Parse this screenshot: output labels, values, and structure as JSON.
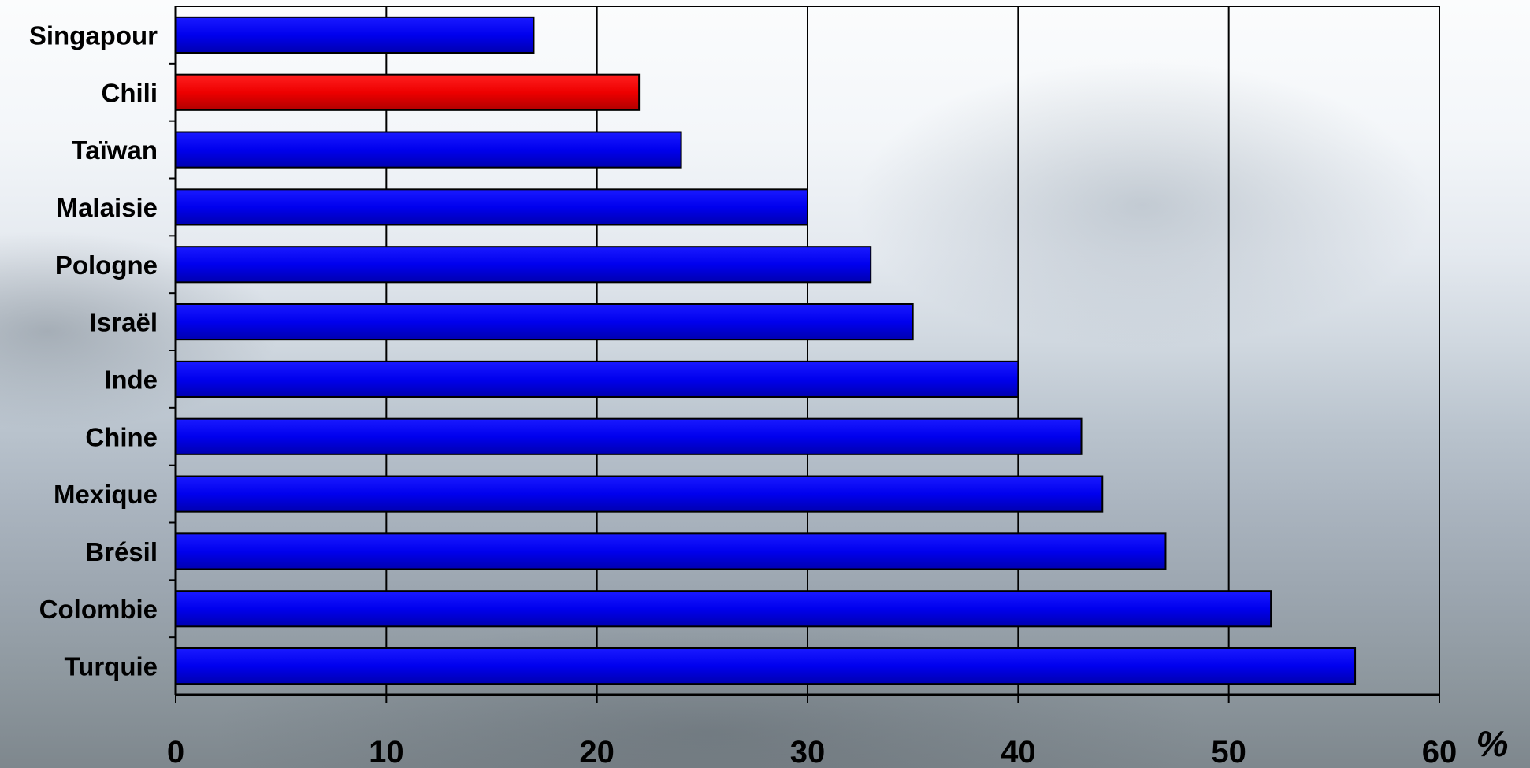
{
  "chart_data": {
    "type": "bar",
    "orientation": "horizontal",
    "categories": [
      "Singapour",
      "Chili",
      "Taïwan",
      "Malaisie",
      "Pologne",
      "Israël",
      "Inde",
      "Chine",
      "Mexique",
      "Brésil",
      "Colombie",
      "Turquie"
    ],
    "values": [
      17,
      22,
      24,
      30,
      33,
      35,
      40,
      43,
      44,
      47,
      52,
      56
    ],
    "highlight": "Chili",
    "colors": {
      "default": "#0000ee",
      "highlight": "#ee0000",
      "edge": "#000000"
    },
    "xlim": [
      0,
      60
    ],
    "xticks": [
      0,
      10,
      20,
      30,
      40,
      50,
      60
    ],
    "xunit": "%",
    "grid": "vertical",
    "title": "",
    "xlabel": "",
    "ylabel": ""
  }
}
